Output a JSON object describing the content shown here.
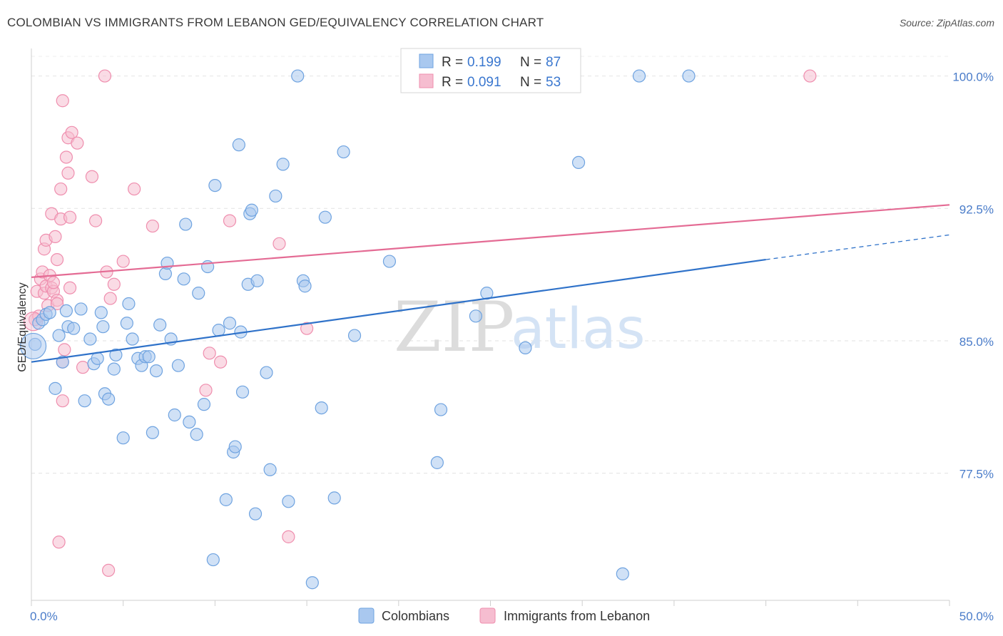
{
  "header": {
    "title": "COLOMBIAN VS IMMIGRANTS FROM LEBANON GED/EQUIVALENCY CORRELATION CHART",
    "source": "Source: ZipAtlas.com"
  },
  "watermark": {
    "zip": "ZIP",
    "atlas": "atlas"
  },
  "legend": {
    "r_label": "R =",
    "n_label": "N =",
    "rows": [
      {
        "r": "0.199",
        "n": "87",
        "color": "#6fa3e0"
      },
      {
        "r": "0.091",
        "n": "53",
        "color": "#f08caa"
      }
    ]
  },
  "colors": {
    "blue_fill": "#a9c8ef",
    "blue_stroke": "#6fa3e0",
    "blue_line": "#2f72c9",
    "pink_fill": "#f6bdd0",
    "pink_stroke": "#ef8eae",
    "pink_line": "#e46b94",
    "tick": "#4a7cc9"
  },
  "chart_data": {
    "type": "scatter",
    "xlabel": "",
    "ylabel": "GED/Equivalency",
    "xlim": [
      0,
      50
    ],
    "ylim": [
      70.3,
      101.8
    ],
    "x_tick_labels": [
      {
        "v": 0,
        "label": "0.0%"
      },
      {
        "v": 50,
        "label": "50.0%"
      }
    ],
    "y_ticks": [
      {
        "v": 100,
        "label": "100.0%"
      },
      {
        "v": 92.5,
        "label": "92.5%"
      },
      {
        "v": 85,
        "label": "85.0%"
      },
      {
        "v": 77.5,
        "label": "77.5%"
      }
    ],
    "grid": "horizontal dashed",
    "legend_placement": "top-center",
    "series": [
      {
        "name": "Colombians",
        "trend": {
          "x0": 0,
          "y0": 83.8,
          "x1": 40,
          "y1": 89.6,
          "dash_to_x": 50,
          "dash_to_y": 91.0
        },
        "points": [
          [
            0.2,
            84.8
          ],
          [
            0.4,
            86.0
          ],
          [
            0.6,
            86.2
          ],
          [
            0.8,
            86.5
          ],
          [
            1.0,
            86.6
          ],
          [
            1.3,
            82.3
          ],
          [
            1.5,
            85.3
          ],
          [
            1.7,
            83.8
          ],
          [
            1.9,
            86.7
          ],
          [
            2.0,
            85.8
          ],
          [
            2.3,
            85.7
          ],
          [
            2.7,
            86.8
          ],
          [
            2.9,
            81.6
          ],
          [
            3.2,
            85.1
          ],
          [
            3.4,
            83.7
          ],
          [
            3.6,
            84.0
          ],
          [
            3.8,
            86.6
          ],
          [
            3.9,
            85.8
          ],
          [
            4.0,
            82.0
          ],
          [
            4.2,
            81.7
          ],
          [
            4.5,
            83.4
          ],
          [
            4.6,
            84.2
          ],
          [
            5.0,
            79.5
          ],
          [
            5.2,
            86.0
          ],
          [
            5.3,
            87.1
          ],
          [
            5.5,
            85.1
          ],
          [
            5.8,
            84.0
          ],
          [
            6.0,
            83.6
          ],
          [
            6.2,
            84.1
          ],
          [
            6.4,
            84.1
          ],
          [
            6.6,
            79.8
          ],
          [
            6.8,
            83.3
          ],
          [
            7.0,
            85.9
          ],
          [
            7.3,
            88.8
          ],
          [
            7.4,
            89.4
          ],
          [
            7.6,
            85.1
          ],
          [
            7.8,
            80.8
          ],
          [
            8.0,
            83.6
          ],
          [
            8.3,
            88.5
          ],
          [
            8.4,
            91.6
          ],
          [
            8.6,
            80.4
          ],
          [
            9.0,
            79.7
          ],
          [
            9.1,
            87.7
          ],
          [
            9.4,
            81.4
          ],
          [
            9.6,
            89.2
          ],
          [
            9.9,
            72.6
          ],
          [
            10.0,
            93.8
          ],
          [
            10.2,
            85.6
          ],
          [
            10.6,
            76.0
          ],
          [
            10.8,
            86.0
          ],
          [
            11.0,
            78.7
          ],
          [
            11.1,
            79.0
          ],
          [
            11.4,
            85.5
          ],
          [
            11.5,
            82.1
          ],
          [
            11.3,
            96.1
          ],
          [
            11.9,
            92.2
          ],
          [
            12.0,
            92.4
          ],
          [
            11.8,
            88.2
          ],
          [
            12.2,
            75.2
          ],
          [
            12.3,
            88.4
          ],
          [
            12.8,
            83.2
          ],
          [
            13.0,
            77.7
          ],
          [
            13.3,
            93.2
          ],
          [
            13.7,
            95.0
          ],
          [
            14.0,
            75.9
          ],
          [
            14.5,
            100.0
          ],
          [
            14.8,
            88.4
          ],
          [
            14.9,
            88.1
          ],
          [
            15.3,
            71.3
          ],
          [
            15.8,
            81.2
          ],
          [
            16.0,
            92.0
          ],
          [
            16.5,
            76.1
          ],
          [
            17.0,
            95.7
          ],
          [
            17.6,
            85.3
          ],
          [
            19.5,
            89.5
          ],
          [
            22.3,
            81.1
          ],
          [
            22.1,
            78.1
          ],
          [
            24.2,
            86.4
          ],
          [
            24.8,
            87.7
          ],
          [
            26.9,
            84.6
          ],
          [
            29.8,
            95.1
          ],
          [
            32.2,
            71.8
          ],
          [
            33.1,
            100.0
          ],
          [
            35.8,
            100.0
          ]
        ]
      },
      {
        "name": "Immigrants from Lebanon",
        "trend": {
          "x0": 0,
          "y0": 88.6,
          "x1": 50,
          "y1": 92.7
        },
        "points": [
          [
            0.2,
            86.2
          ],
          [
            0.3,
            87.8
          ],
          [
            0.4,
            86.4
          ],
          [
            0.5,
            88.5
          ],
          [
            0.6,
            88.9
          ],
          [
            0.7,
            90.2
          ],
          [
            0.7,
            87.7
          ],
          [
            0.8,
            90.7
          ],
          [
            0.8,
            88.1
          ],
          [
            0.9,
            87.0
          ],
          [
            1.0,
            88.7
          ],
          [
            1.1,
            88.0
          ],
          [
            1.1,
            92.2
          ],
          [
            1.2,
            87.8
          ],
          [
            1.2,
            88.3
          ],
          [
            1.3,
            90.9
          ],
          [
            1.4,
            87.3
          ],
          [
            1.4,
            89.6
          ],
          [
            1.6,
            91.9
          ],
          [
            1.4,
            87.1
          ],
          [
            1.5,
            73.6
          ],
          [
            1.7,
            98.6
          ],
          [
            1.6,
            93.6
          ],
          [
            1.7,
            83.8
          ],
          [
            1.7,
            81.6
          ],
          [
            1.8,
            84.5
          ],
          [
            1.9,
            95.4
          ],
          [
            2.0,
            96.5
          ],
          [
            2.0,
            94.5
          ],
          [
            2.1,
            88.0
          ],
          [
            2.1,
            92.0
          ],
          [
            2.2,
            96.8
          ],
          [
            2.5,
            96.2
          ],
          [
            2.8,
            83.5
          ],
          [
            3.3,
            94.3
          ],
          [
            3.5,
            91.8
          ],
          [
            4.0,
            100.0
          ],
          [
            4.1,
            88.9
          ],
          [
            4.2,
            72.0
          ],
          [
            4.3,
            87.4
          ],
          [
            4.5,
            88.2
          ],
          [
            5.0,
            89.5
          ],
          [
            5.6,
            93.6
          ],
          [
            6.6,
            91.5
          ],
          [
            9.5,
            82.2
          ],
          [
            9.7,
            84.3
          ],
          [
            10.3,
            83.8
          ],
          [
            10.8,
            91.8
          ],
          [
            13.5,
            90.5
          ],
          [
            14.0,
            73.9
          ],
          [
            15.0,
            85.7
          ],
          [
            42.4,
            100.0
          ]
        ]
      }
    ]
  },
  "bottom_legend": {
    "items": [
      {
        "label": "Colombians"
      },
      {
        "label": "Immigrants from Lebanon"
      }
    ]
  }
}
